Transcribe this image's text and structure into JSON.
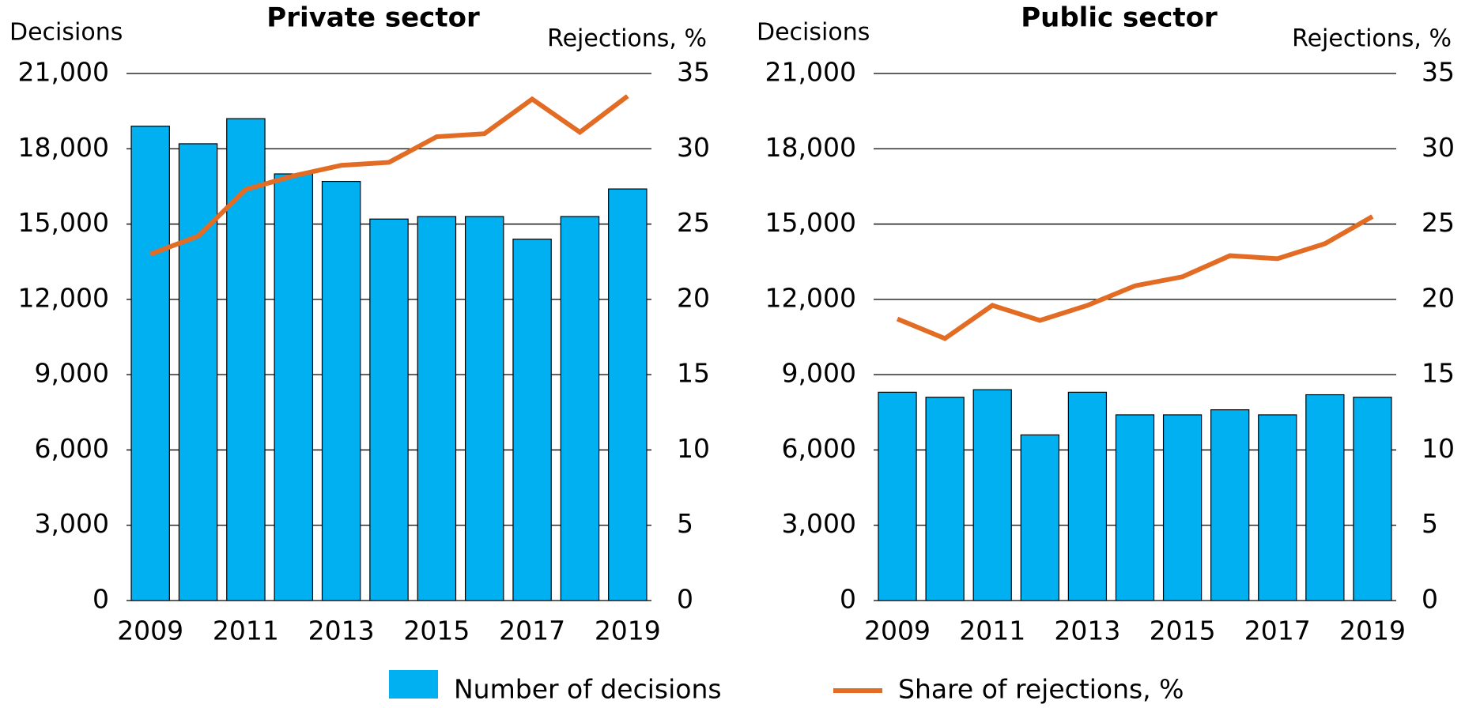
{
  "chart_data": [
    {
      "type": "bar",
      "title": "Private sector",
      "ylabel": "Decisions",
      "y2label": "Rejections, %",
      "categories": [
        "2009",
        null,
        "2011",
        null,
        "2013",
        null,
        "2015",
        null,
        "2017",
        null,
        "2019"
      ],
      "series": [
        {
          "name": "Number of decisions",
          "type": "bar",
          "color": "#00b0f0",
          "values": [
            18900,
            18200,
            19200,
            17000,
            16700,
            15200,
            15300,
            15300,
            14400,
            15300,
            16400
          ]
        },
        {
          "name": "Share of rejections, %",
          "type": "line",
          "axis": "y2",
          "color": "#e36c25",
          "values": [
            23.0,
            24.2,
            27.3,
            28.2,
            28.9,
            29.1,
            30.8,
            31.0,
            33.3,
            31.1,
            33.5
          ]
        }
      ],
      "ylim": [
        0,
        21000
      ],
      "yticks": [
        0,
        {
          "value": 3000,
          "label": "3,000"
        },
        {
          "value": 6000,
          "label": "6,000"
        },
        {
          "value": 9000,
          "label": "9,000"
        },
        {
          "value": 12000,
          "label": "12,000"
        },
        {
          "value": 15000,
          "label": "15,000"
        },
        {
          "value": 18000,
          "label": "18,000"
        },
        {
          "value": 21000,
          "label": "21,000"
        }
      ],
      "y2lim": [
        0,
        35
      ],
      "y2ticks": [
        0,
        5,
        10,
        15,
        20,
        25,
        30,
        35
      ],
      "grid": true
    },
    {
      "type": "bar",
      "title": "Public sector",
      "ylabel": "Decisions",
      "y2label": "Rejections, %",
      "categories": [
        "2009",
        null,
        "2011",
        null,
        "2013",
        null,
        "2015",
        null,
        "2017",
        null,
        "2019"
      ],
      "series": [
        {
          "type": "bar",
          "color": "#00b0f0",
          "values": [
            8300,
            8100,
            8400,
            6600,
            8300,
            7400,
            7400,
            7600,
            7400,
            8200,
            8100
          ]
        },
        {
          "type": "line",
          "axis": "y2",
          "color": "#e36c25",
          "values": [
            18.7,
            17.4,
            19.6,
            18.6,
            19.6,
            20.9,
            21.5,
            22.9,
            22.7,
            23.7,
            25.5
          ]
        }
      ],
      "ylim": [
        0,
        21000
      ],
      "yticks": [
        0,
        {
          "value": 3000,
          "label": "3,000"
        },
        {
          "value": 6000,
          "label": "6,000"
        },
        {
          "value": 9000,
          "label": "9,000"
        },
        {
          "value": 12000,
          "label": "12,000"
        },
        {
          "value": 15000,
          "label": "15,000"
        },
        {
          "value": 18000,
          "label": "18,000"
        },
        {
          "value": 21000,
          "label": "21,000"
        }
      ],
      "y2lim": [
        0,
        35
      ],
      "y2ticks": [
        0,
        5,
        10,
        15,
        20,
        25,
        30,
        35
      ],
      "grid": true
    }
  ]
}
